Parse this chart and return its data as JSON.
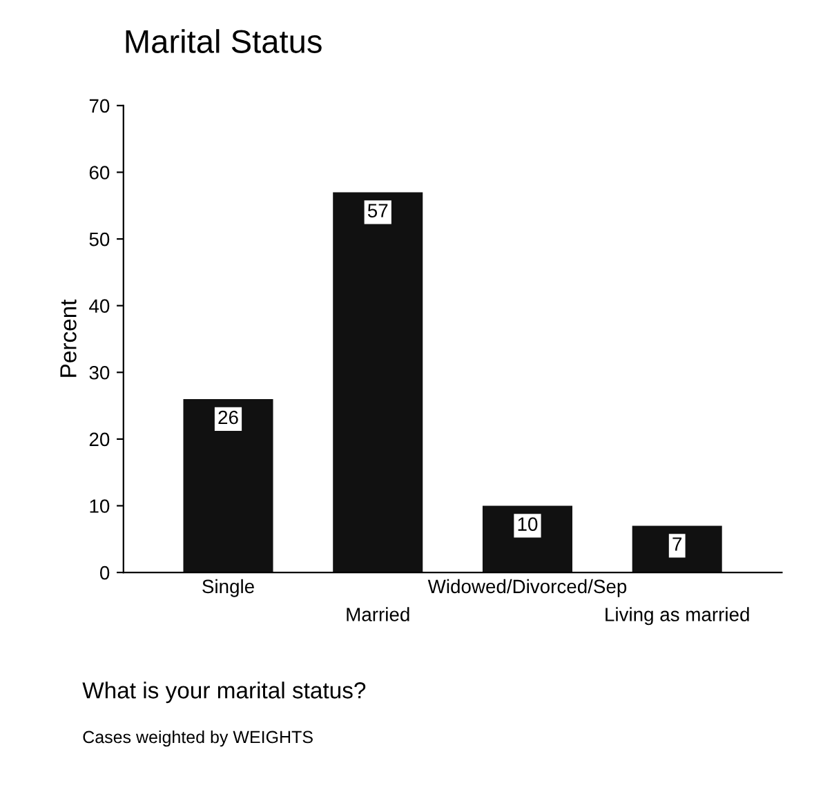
{
  "chart_data": {
    "type": "bar",
    "title": "Marital Status",
    "ylabel": "Percent",
    "categories": [
      "Single",
      "Married",
      "Widowed/Divorced/Sep",
      "Living as married"
    ],
    "values": [
      26,
      57,
      10,
      7
    ],
    "color": "#111111",
    "data_labels": true,
    "ylim": [
      0,
      70
    ],
    "yticks": [
      0,
      10,
      20,
      30,
      40,
      50,
      60,
      70
    ],
    "grid": false,
    "legend": false,
    "annotations": [
      "What is your marital status?",
      "Cases weighted by WEIGHTS"
    ]
  }
}
